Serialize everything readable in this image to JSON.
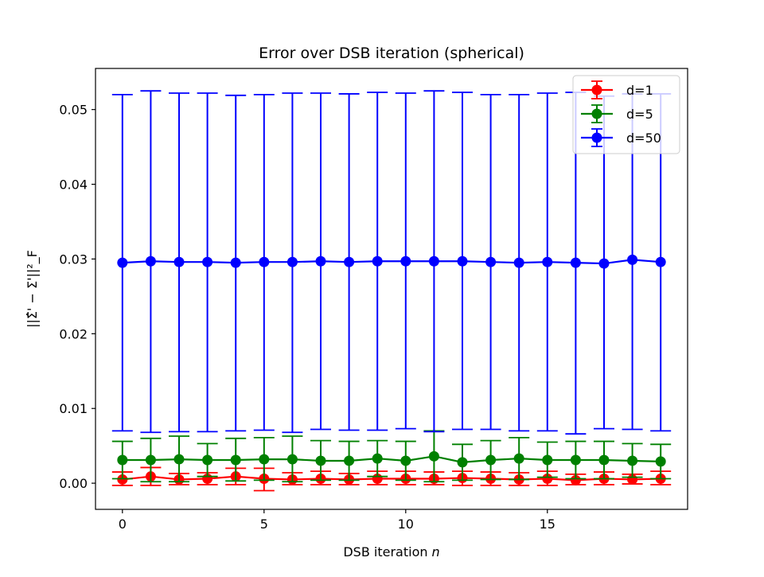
{
  "chart_data": {
    "type": "line",
    "subtype": "errorbar",
    "title": "Error over DSB iteration (spherical)",
    "xlabel": "DSB iteration",
    "xlabel_var": "n",
    "ylabel": "||Σ̂' − Σ'||²_F",
    "xlim": [
      -0.95,
      19.95
    ],
    "ylim": [
      -0.0035,
      0.0555
    ],
    "xticks": [
      0,
      5,
      10,
      15
    ],
    "xtick_labels": [
      "0",
      "5",
      "10",
      "15"
    ],
    "yticks": [
      0.0,
      0.01,
      0.02,
      0.03,
      0.04,
      0.05
    ],
    "ytick_labels": [
      "0.00",
      "0.01",
      "0.02",
      "0.03",
      "0.04",
      "0.05"
    ],
    "grid": false,
    "legend_position": "top-right",
    "x": [
      0,
      1,
      2,
      3,
      4,
      5,
      6,
      7,
      8,
      9,
      10,
      11,
      12,
      13,
      14,
      15,
      16,
      17,
      18,
      19
    ],
    "series": [
      {
        "name": "d=1",
        "color": "#ff0000",
        "values": [
          0.0005,
          0.0009,
          0.0005,
          0.0006,
          0.0009,
          0.0006,
          0.0005,
          0.0006,
          0.0005,
          0.0006,
          0.0006,
          0.0006,
          0.0007,
          0.0006,
          0.0005,
          0.0006,
          0.0004,
          0.0006,
          0.0005,
          0.0006
        ],
        "err_lower": [
          -0.0003,
          -0.0003,
          -0.0002,
          -0.0002,
          -0.0002,
          -0.001,
          -0.0002,
          -0.0002,
          -0.0002,
          -0.0002,
          -0.0002,
          -0.0002,
          -0.0003,
          -0.0003,
          -0.0003,
          -0.0003,
          -0.0002,
          -0.0002,
          -0.0001,
          -0.0002
        ],
        "err_upper": [
          0.0015,
          0.0021,
          0.0013,
          0.0014,
          0.002,
          0.002,
          0.0014,
          0.0016,
          0.0013,
          0.0016,
          0.0016,
          0.0015,
          0.0016,
          0.0015,
          0.0014,
          0.0016,
          0.0012,
          0.0015,
          0.0012,
          0.0016
        ]
      },
      {
        "name": "d=5",
        "color": "#008000",
        "values": [
          0.0031,
          0.0031,
          0.0032,
          0.0031,
          0.0031,
          0.0032,
          0.0032,
          0.003,
          0.003,
          0.0033,
          0.003,
          0.0036,
          0.0028,
          0.0031,
          0.0033,
          0.0031,
          0.0031,
          0.0031,
          0.003,
          0.0029
        ],
        "err_lower": [
          0.0006,
          0.0002,
          0.0002,
          0.0009,
          0.0003,
          0.0004,
          0.0002,
          0.0004,
          0.0004,
          0.0009,
          0.0004,
          0.0002,
          0.0004,
          0.0005,
          0.0005,
          0.0008,
          0.0006,
          0.0006,
          0.0008,
          0.0006
        ],
        "err_upper": [
          0.0056,
          0.006,
          0.0063,
          0.0053,
          0.006,
          0.0061,
          0.0063,
          0.0057,
          0.0056,
          0.0057,
          0.0056,
          0.007,
          0.0052,
          0.0057,
          0.0061,
          0.0055,
          0.0056,
          0.0056,
          0.0053,
          0.0052
        ]
      },
      {
        "name": "d=50",
        "color": "#0000ff",
        "values": [
          0.0295,
          0.0297,
          0.0296,
          0.0296,
          0.0295,
          0.0296,
          0.0296,
          0.0297,
          0.0296,
          0.0297,
          0.0297,
          0.0297,
          0.0297,
          0.0296,
          0.0295,
          0.0296,
          0.0295,
          0.0294,
          0.0299,
          0.0296
        ],
        "err_lower": [
          0.007,
          0.0068,
          0.0069,
          0.0069,
          0.007,
          0.0071,
          0.0068,
          0.0072,
          0.0071,
          0.0071,
          0.0073,
          0.0069,
          0.0072,
          0.0072,
          0.007,
          0.007,
          0.0066,
          0.0073,
          0.0072,
          0.007
        ],
        "err_upper": [
          0.052,
          0.0525,
          0.0522,
          0.0522,
          0.0519,
          0.052,
          0.0522,
          0.0522,
          0.0521,
          0.0523,
          0.0522,
          0.0525,
          0.0523,
          0.052,
          0.052,
          0.0522,
          0.0523,
          0.0518,
          0.0521,
          0.0521
        ]
      }
    ]
  }
}
